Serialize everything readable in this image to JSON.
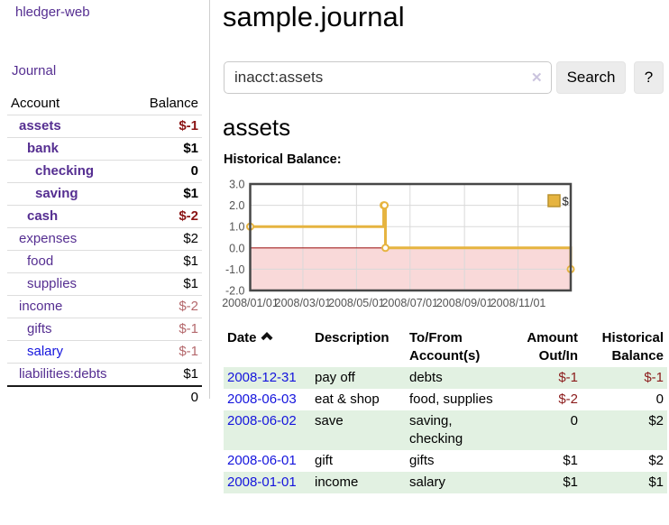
{
  "app": {
    "title": "hledger-web",
    "nav_journal": "Journal"
  },
  "sidebar": {
    "headers": {
      "account": "Account",
      "balance": "Balance"
    },
    "accounts": [
      {
        "name": "assets",
        "depth": 1,
        "bold": true,
        "name_color": "purple",
        "balance": "$-1",
        "balance_style": "neg-bold"
      },
      {
        "name": "bank",
        "depth": 2,
        "bold": true,
        "name_color": "purple",
        "balance": "$1",
        "balance_style": "bold"
      },
      {
        "name": "checking",
        "depth": 3,
        "bold": true,
        "name_color": "purple",
        "balance": "0",
        "balance_style": "bold"
      },
      {
        "name": "saving",
        "depth": 3,
        "bold": true,
        "name_color": "purple",
        "balance": "$1",
        "balance_style": "bold"
      },
      {
        "name": "cash",
        "depth": 2,
        "bold": true,
        "name_color": "purple",
        "balance": "$-2",
        "balance_style": "neg-bold"
      },
      {
        "name": "expenses",
        "depth": 1,
        "bold": false,
        "name_color": "purple",
        "balance": "$2",
        "balance_style": "plain"
      },
      {
        "name": "food",
        "depth": 2,
        "bold": false,
        "name_color": "purple",
        "balance": "$1",
        "balance_style": "plain"
      },
      {
        "name": "supplies",
        "depth": 2,
        "bold": false,
        "name_color": "purple",
        "balance": "$1",
        "balance_style": "plain"
      },
      {
        "name": "income",
        "depth": 1,
        "bold": false,
        "name_color": "purple",
        "balance": "$-2",
        "balance_style": "neg-light"
      },
      {
        "name": "gifts",
        "depth": 2,
        "bold": false,
        "name_color": "purple",
        "balance": "$-1",
        "balance_style": "neg-light"
      },
      {
        "name": "salary",
        "depth": 2,
        "bold": false,
        "name_color": "blue",
        "balance": "$-1",
        "balance_style": "neg-light"
      },
      {
        "name": "liabilities:debts",
        "depth": 1,
        "bold": false,
        "name_color": "purple",
        "balance": "$1",
        "balance_style": "plain"
      }
    ],
    "total_balance": "0"
  },
  "main": {
    "title": "sample.journal",
    "search": {
      "value": "inacct:assets",
      "clear_icon": "✕",
      "button": "Search",
      "help_button": "?"
    },
    "heading": "assets",
    "chart_label": "Historical Balance:"
  },
  "chart_data": {
    "type": "line",
    "step": true,
    "title": "Historical Balance",
    "series": [
      {
        "name": "$",
        "color": "#E6B440",
        "points": [
          [
            "2008-01-01",
            1
          ],
          [
            "2008-06-01",
            2
          ],
          [
            "2008-06-02",
            2
          ],
          [
            "2008-06-03",
            0
          ],
          [
            "2008-12-31",
            -1
          ]
        ]
      }
    ],
    "x_ticks": [
      "2008/01/01",
      "2008/03/01",
      "2008/05/01",
      "2008/07/01",
      "2008/09/01",
      "2008/11/01"
    ],
    "y_ticks": [
      "3.0",
      "2.0",
      "1.0",
      "0.0",
      "-1.0",
      "-2.0"
    ],
    "ylim": [
      -2,
      3
    ],
    "xlim": [
      "2008-01-01",
      "2008-12-31"
    ],
    "legend_position": "top-right",
    "grid": true,
    "negative_region_color": "#F9D9D9",
    "zero_line_color": "#A32020"
  },
  "register_table": {
    "headers": {
      "date": "Date",
      "description": "Description",
      "account_lines": [
        "To/From",
        "Account(s)"
      ],
      "amount_lines": [
        "Amount",
        "Out/In"
      ],
      "balance_lines": [
        "Historical",
        "Balance"
      ]
    },
    "rows": [
      {
        "date": "2008-12-31",
        "description": "pay off",
        "account_lines": [
          "debts"
        ],
        "amount": "$-1",
        "amount_negative": true,
        "balance": "$-1",
        "balance_negative": true
      },
      {
        "date": "2008-06-03",
        "description": "eat & shop",
        "account_lines": [
          "food, supplies"
        ],
        "amount": "$-2",
        "amount_negative": true,
        "balance": "0",
        "balance_negative": false
      },
      {
        "date": "2008-06-02",
        "description": "save",
        "account_lines": [
          "saving,",
          "checking"
        ],
        "amount": "0",
        "amount_negative": false,
        "balance": "$2",
        "balance_negative": false
      },
      {
        "date": "2008-06-01",
        "description": "gift",
        "account_lines": [
          "gifts"
        ],
        "amount": "$1",
        "amount_negative": false,
        "balance": "$2",
        "balance_negative": false
      },
      {
        "date": "2008-01-01",
        "description": "income",
        "account_lines": [
          "salary"
        ],
        "amount": "$1",
        "amount_negative": false,
        "balance": "$1",
        "balance_negative": false
      }
    ]
  },
  "colors": {
    "link_purple": "#552E91",
    "link_blue": "#1414DD",
    "negative_bold": "#8B1414",
    "negative": "#8B1A1A",
    "negative_light": "#B4686C",
    "row_stripe_green": "#E2F1E2",
    "chart_line": "#E6B440"
  }
}
